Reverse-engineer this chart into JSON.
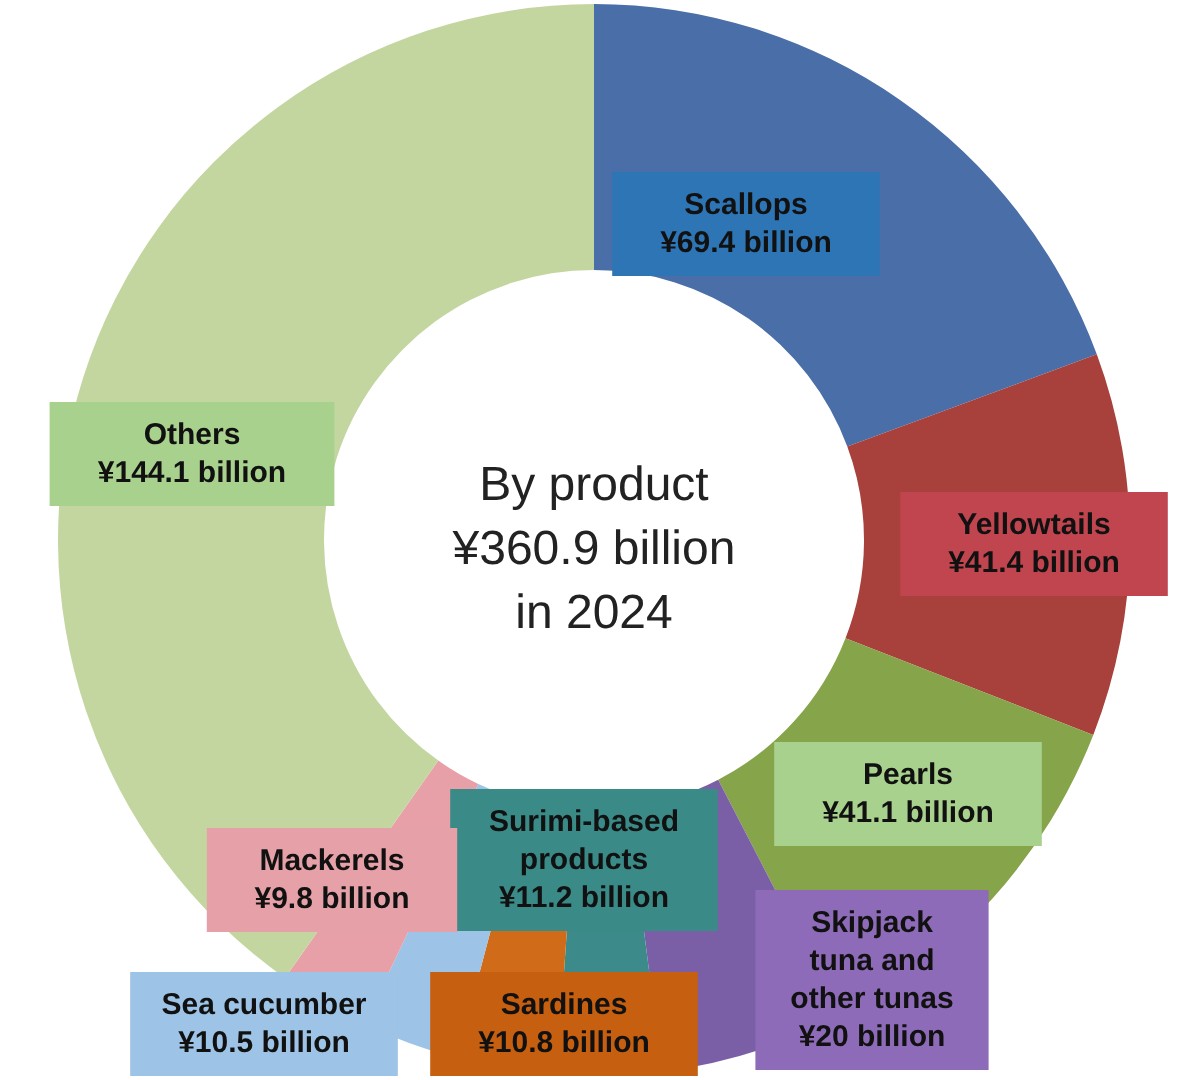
{
  "chart_data": {
    "type": "donut",
    "title": "By product\n¥360.9 billion\nin 2024",
    "categories": [
      "Scallops",
      "Yellowtails",
      "Pearls",
      "Skipjack tuna and other tunas",
      "Surimi-based products",
      "Sardines",
      "Sea cucumber",
      "Mackerels",
      "Others"
    ],
    "values": [
      69.4,
      41.4,
      41.1,
      20,
      11.2,
      10.8,
      10.5,
      9.8,
      144.1
    ],
    "value_labels": [
      "¥69.4 billion",
      "¥41.4 billion",
      "¥41.1 billion",
      "¥20 billion",
      "¥11.2 billion",
      "¥10.8 billion",
      "¥10.5 billion",
      "¥9.8 billion",
      "¥144.1 billion"
    ],
    "colors": [
      "#4a6ea8",
      "#a8413c",
      "#86a44a",
      "#7a5fa6",
      "#3c8a8a",
      "#d06b1a",
      "#9dc3e6",
      "#e8a0a8",
      "#c4d6a0"
    ]
  }
}
